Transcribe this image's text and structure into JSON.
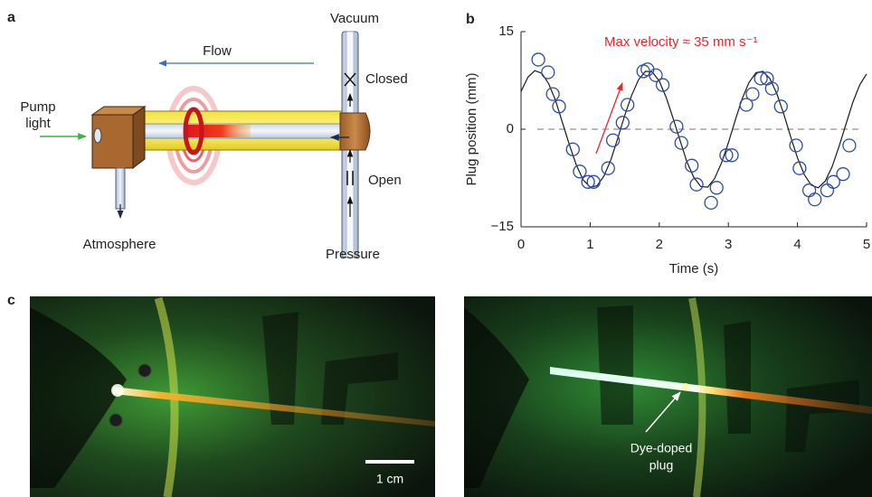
{
  "panel_a": {
    "label": "a",
    "vacuum": "Vacuum",
    "flow": "Flow",
    "closed": "Closed",
    "pump_light": [
      "Pump",
      "light"
    ],
    "open": "Open",
    "atmosphere": "Atmosphere",
    "pressure": "Pressure"
  },
  "chart_data": {
    "type": "scatter",
    "panel_label": "b",
    "annotation": "Max velocity ≈ 35 mm s⁻¹",
    "annotation_color": "#e8262b",
    "xlabel": "Time (s)",
    "ylabel": "Plug position (mm)",
    "xlim": [
      0,
      5
    ],
    "xticks": [
      0,
      1,
      2,
      3,
      4,
      5
    ],
    "ylim": [
      -15,
      15
    ],
    "yticks": [
      {
        "value": -15,
        "label": "−15"
      },
      0,
      15
    ],
    "reference_line": 0,
    "series": [
      {
        "kind": "markers",
        "color": "#2c4da0",
        "x": [
          0.25,
          0.39,
          0.46,
          0.55,
          0.75,
          0.85,
          0.97,
          1.05,
          1.26,
          1.33,
          1.47,
          1.54,
          1.77,
          1.83,
          1.95,
          2.05,
          2.25,
          2.32,
          2.47,
          2.54,
          2.75,
          2.83,
          2.97,
          3.05,
          3.26,
          3.35,
          3.47,
          3.56,
          3.63,
          3.76,
          3.98,
          4.03,
          4.17,
          4.25,
          4.43,
          4.52,
          4.66,
          4.75
        ],
        "values": [
          10.7,
          8.75,
          5.4,
          3.5,
          -3.1,
          -6.5,
          -8.1,
          -8.1,
          -6.0,
          -1.7,
          1.0,
          3.75,
          8.9,
          9.2,
          8.3,
          6.8,
          0.4,
          -2.1,
          -5.6,
          -8.5,
          -11.3,
          -9.0,
          -4.0,
          -4.0,
          3.75,
          5.4,
          7.8,
          7.8,
          6.25,
          3.5,
          -2.5,
          -6.0,
          -9.4,
          -10.8,
          -9.4,
          -8.1,
          -6.9,
          -2.5
        ]
      },
      {
        "kind": "line",
        "color": "#1a1a1a",
        "x": [
          0,
          0.1,
          0.2,
          0.3,
          0.4,
          0.5,
          0.6,
          0.7,
          0.8,
          0.9,
          1.0,
          1.1,
          1.2,
          1.3,
          1.4,
          1.5,
          1.6,
          1.7,
          1.8,
          1.9,
          2.0,
          2.1,
          2.2,
          2.3,
          2.4,
          2.5,
          2.6,
          2.7,
          2.8,
          2.9,
          3.0,
          3.1,
          3.2,
          3.3,
          3.4,
          3.5,
          3.6,
          3.7,
          3.8,
          3.9,
          4.0,
          4.1,
          4.2,
          4.3,
          4.4,
          4.5,
          4.6,
          4.7,
          4.8,
          4.9,
          5.0
        ],
        "values": [
          5.8,
          8.0,
          9.0,
          8.6,
          7.0,
          4.4,
          1.0,
          -2.4,
          -5.5,
          -7.8,
          -8.9,
          -8.7,
          -7.2,
          -4.7,
          -1.4,
          2.1,
          5.2,
          7.6,
          8.9,
          8.8,
          7.4,
          4.9,
          1.7,
          -1.7,
          -5.0,
          -7.4,
          -8.8,
          -8.9,
          -7.6,
          -5.2,
          -2.1,
          1.4,
          4.7,
          7.2,
          8.7,
          8.9,
          7.8,
          5.5,
          2.4,
          -1.1,
          -4.4,
          -7.0,
          -8.6,
          -9.0,
          -8.0,
          -5.8,
          -2.7,
          0.7,
          4.1,
          6.8,
          8.5
        ]
      }
    ]
  },
  "panel_c": {
    "label": "c",
    "scale_bar": "1 cm",
    "plug_label": [
      "Dye-doped",
      "plug"
    ]
  }
}
